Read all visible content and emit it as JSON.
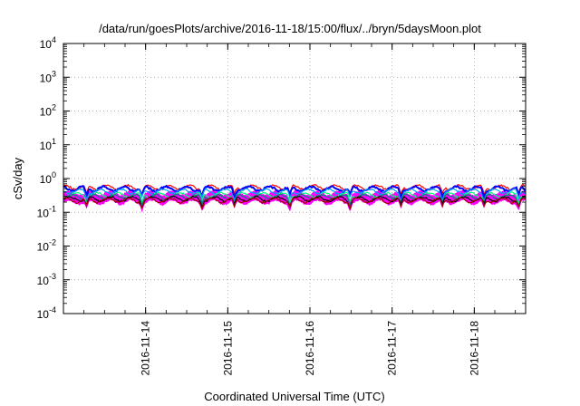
{
  "chart_data": {
    "type": "area",
    "title": "/data/run/goesPlots/archive/2016-11-18/15:00/flux/../bryn/5daysMoon.plot",
    "xlabel": "Coordinated Universal Time (UTC)",
    "ylabel": "cSv/day",
    "yscale": "log",
    "ylim": [
      0.0001,
      10000
    ],
    "xlim": [
      "2016-11-13T00:00",
      "2016-11-18T15:00"
    ],
    "x_ticks": [
      "2016-11-14",
      "2016-11-15",
      "2016-11-16",
      "2016-11-17",
      "2016-11-18"
    ],
    "y_ticks": [
      {
        "base": "10",
        "exp": "-4",
        "value": 0.0001
      },
      {
        "base": "10",
        "exp": "-3",
        "value": 0.001
      },
      {
        "base": "10",
        "exp": "-2",
        "value": 0.01
      },
      {
        "base": "10",
        "exp": "-1",
        "value": 0.1
      },
      {
        "base": "10",
        "exp": "0",
        "value": 1
      },
      {
        "base": "10",
        "exp": "1",
        "value": 10
      },
      {
        "base": "10",
        "exp": "2",
        "value": 100
      },
      {
        "base": "10",
        "exp": "3",
        "value": 1000
      },
      {
        "base": "10",
        "exp": "4",
        "value": 10000
      }
    ],
    "grid": true,
    "series": [
      {
        "color": "#ff00ff",
        "base": 0.2,
        "dip": 0.11,
        "fill": true
      },
      {
        "color": "#ff0000",
        "base": 0.55,
        "dip": 0.3
      },
      {
        "color": "#0000ff",
        "base": 0.5,
        "dip": 0.25
      },
      {
        "color": "#00a0ff",
        "base": 0.42,
        "dip": 0.22
      },
      {
        "color": "#00ff80",
        "base": 0.33,
        "dip": 0.18
      },
      {
        "color": "#008080",
        "base": 0.29,
        "dip": 0.16
      },
      {
        "color": "#000000",
        "base": 0.25,
        "dip": 0.14
      },
      {
        "color": "#a00000",
        "base": 0.23,
        "dip": 0.13
      }
    ]
  }
}
